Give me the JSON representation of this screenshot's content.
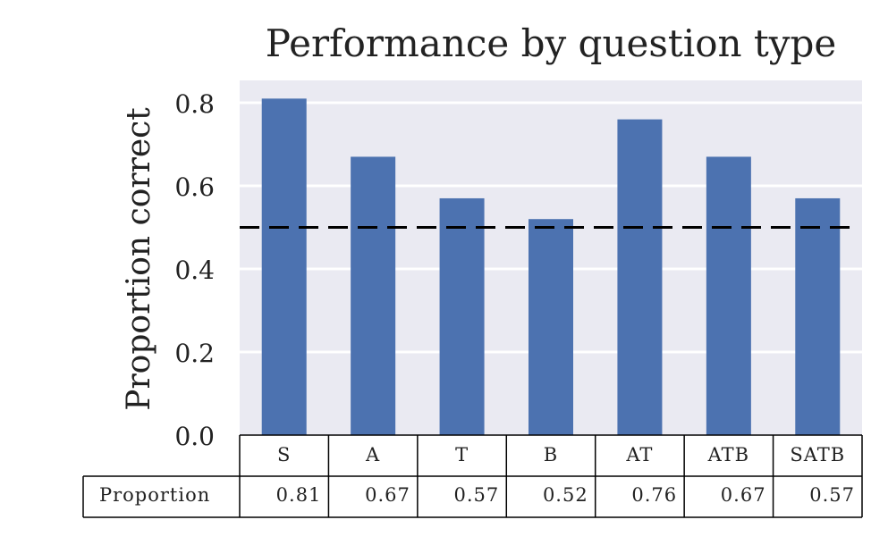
{
  "chart_data": {
    "type": "bar",
    "title": "Performance by question type",
    "xlabel": "",
    "ylabel": "Proportion correct",
    "categories": [
      "S",
      "A",
      "T",
      "B",
      "AT",
      "ATB",
      "SATB"
    ],
    "values": [
      0.81,
      0.67,
      0.57,
      0.52,
      0.76,
      0.67,
      0.57
    ],
    "ylim": [
      0,
      0.85
    ],
    "yticks": [
      "0.0",
      "0.2",
      "0.4",
      "0.6",
      "0.8"
    ],
    "reference_line": {
      "y": 0.5,
      "style": "dashed",
      "color": "#000000"
    },
    "grid": true,
    "bar_color": "#4c72b0",
    "plot_background": "#eaeaf2",
    "table": {
      "row_label": "Proportion",
      "cells": [
        "0.81",
        "0.67",
        "0.57",
        "0.52",
        "0.76",
        "0.67",
        "0.57"
      ]
    }
  }
}
